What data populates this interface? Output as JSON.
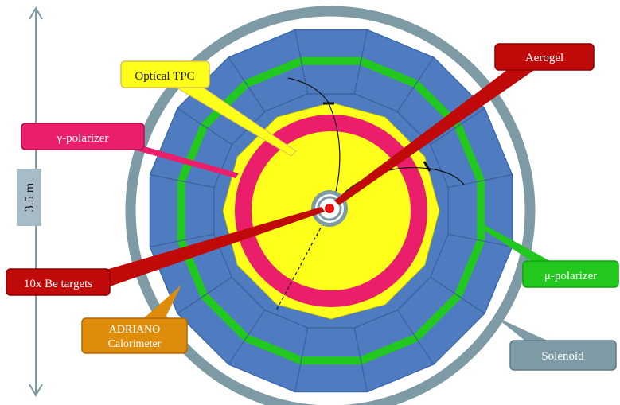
{
  "scale_label": "3.5 m",
  "callouts": {
    "optical_tpc": "Optical TPC",
    "aerogel": "Aerogel",
    "gamma_polarizer": "γ-polarizer",
    "be_targets": "10x Be targets",
    "adriano_line1": "ADRIANO",
    "adriano_line2": "Calorimeter",
    "mu_polarizer": "μ-polarizer",
    "solenoid": "Solenoid"
  },
  "colors": {
    "solenoid_ring": "#7e9aa5",
    "calorimeter_blue": "#4f7cc0",
    "mu_polarizer_green": "#22c81e",
    "gamma_polarizer_pink": "#ea1e6b",
    "tpc_yellow": "#ffff1c",
    "aerogel_red": "#c00a0a",
    "adriano_orange": "#de8c0c",
    "scale_box": "#a7bcc6"
  }
}
